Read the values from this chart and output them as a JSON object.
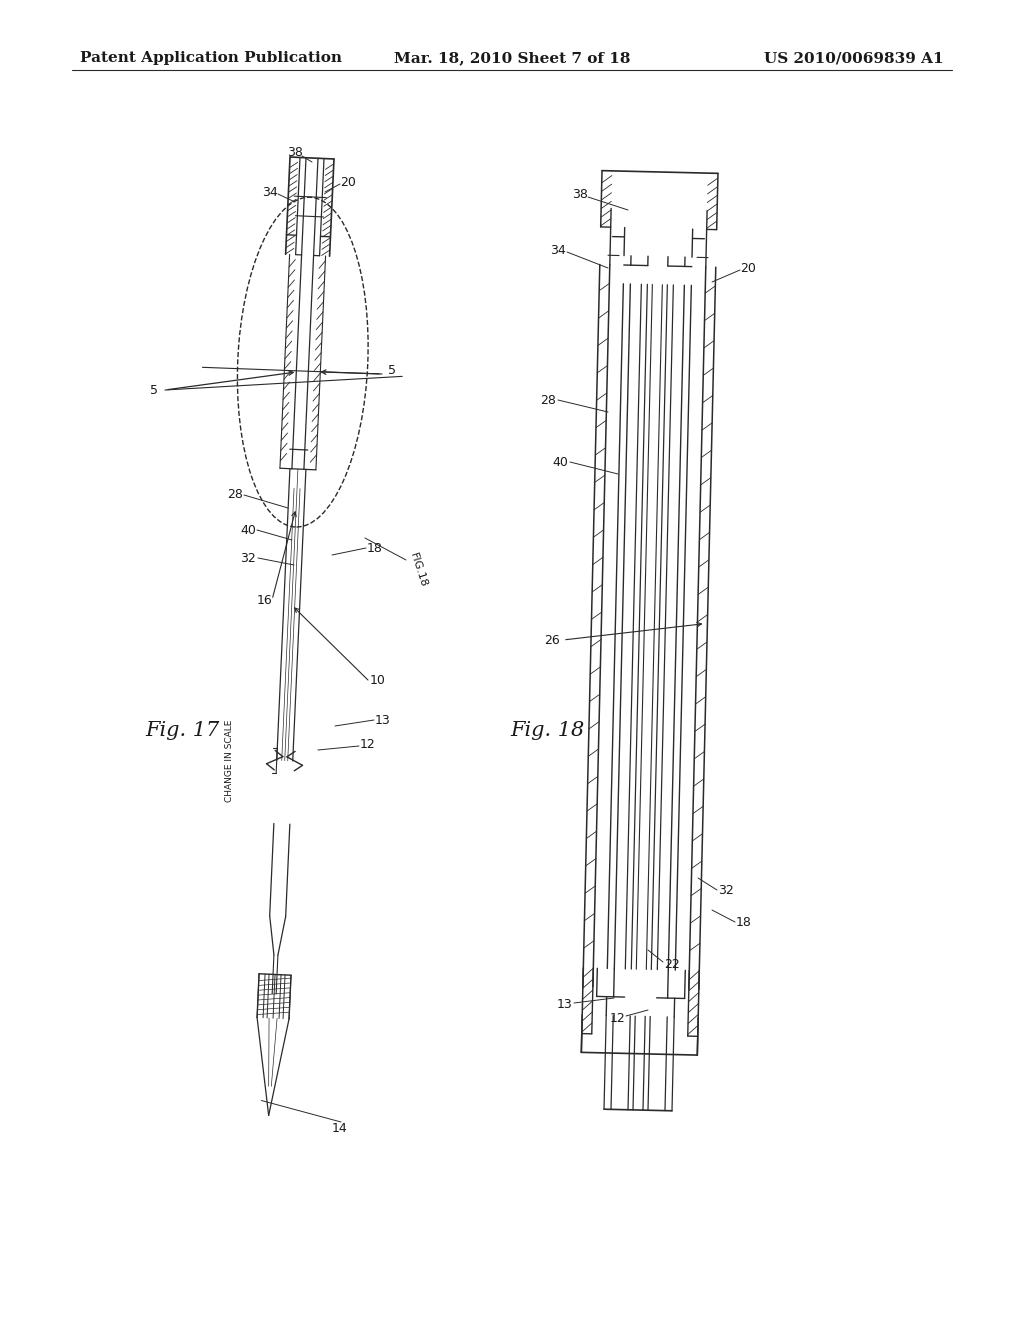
{
  "header_left": "Patent Application Publication",
  "header_center": "Mar. 18, 2010 Sheet 7 of 18",
  "header_right": "US 2010/0069839 A1",
  "fig17_label": "Fig. 17",
  "fig18_label": "Fig. 18",
  "change_in_scale": "CHANGE IN SCALE",
  "bg_color": "#ffffff",
  "line_color": "#2a2a2a",
  "text_color": "#1a1a1a",
  "header_font_size": 11,
  "label_font_size": 9,
  "fig_label_font_size": 15
}
